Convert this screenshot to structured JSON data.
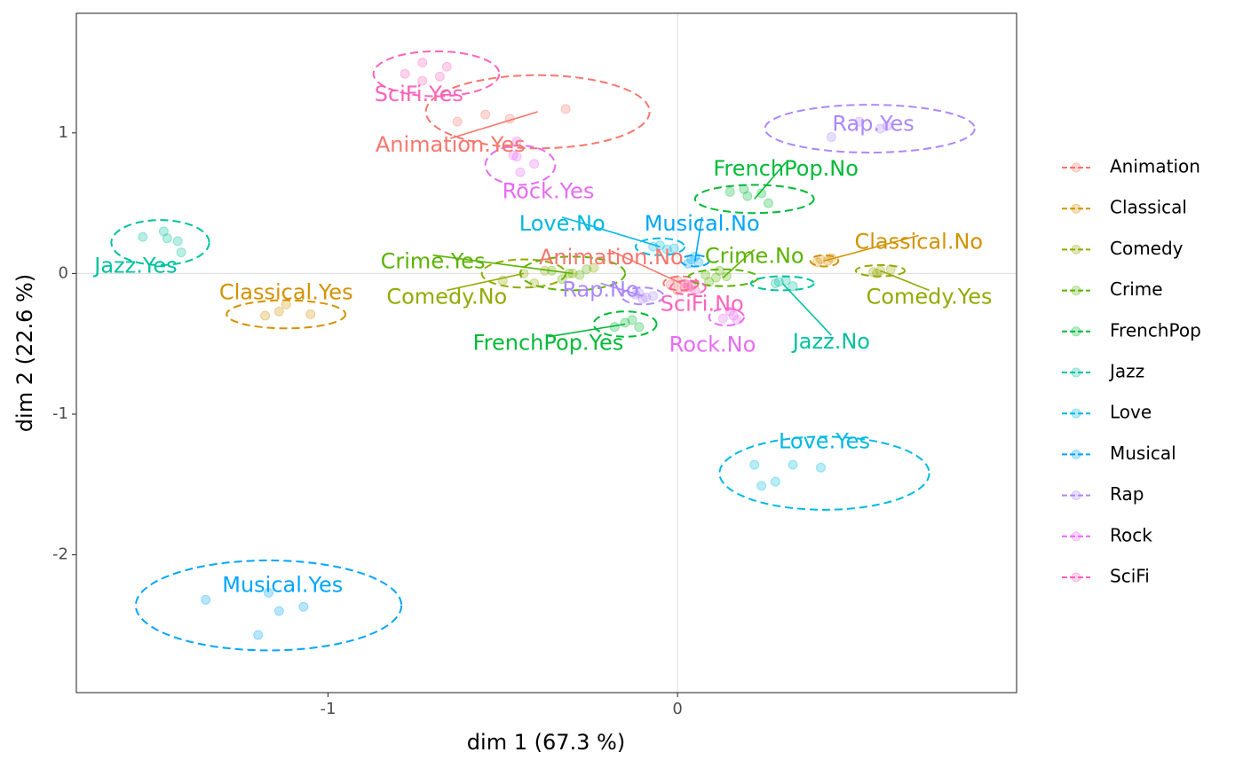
{
  "chart_data": {
    "type": "scatter",
    "xlabel": "dim 1 (67.3 %)",
    "ylabel": "dim 2 (22.6 %)",
    "xlim": [
      -1.72,
      0.97
    ],
    "ylim": [
      -2.98,
      1.85
    ],
    "xticks": [
      -1,
      0
    ],
    "yticks": [
      -2,
      -1,
      0,
      1
    ],
    "xtick_labels": [
      "-1",
      "0"
    ],
    "ytick_labels": [
      "-2",
      "-1",
      "0",
      "1"
    ],
    "grid": "reference lines at x=0 and y=0",
    "legend_position": "right",
    "legend": [
      "Animation",
      "Classical",
      "Comedy",
      "Crime",
      "FrenchPop",
      "Jazz",
      "Love",
      "Musical",
      "Rap",
      "Rock",
      "SciFi"
    ],
    "series": [
      {
        "name": "Animation",
        "color": "#F8766D",
        "groups": [
          {
            "label": "Animation.Yes",
            "center": [
              -0.4,
              1.15
            ],
            "label_pos": [
              -0.65,
              0.91
            ],
            "points": [
              [
                -0.63,
                1.08
              ],
              [
                -0.55,
                1.13
              ],
              [
                -0.48,
                1.1
              ],
              [
                -0.32,
                1.17
              ]
            ],
            "ellipse": {
              "rx": 0.32,
              "ry": 0.26
            }
          },
          {
            "label": "Animation.No",
            "center": [
              0.01,
              -0.07
            ],
            "label_pos": [
              -0.19,
              0.11
            ],
            "points": [
              [
                0.0,
                -0.05
              ],
              [
                0.02,
                -0.07
              ],
              [
                -0.02,
                -0.08
              ],
              [
                0.03,
                -0.1
              ],
              [
                0.0,
                -0.12
              ]
            ],
            "ellipse": {
              "rx": 0.05,
              "ry": 0.05
            }
          }
        ]
      },
      {
        "name": "Classical",
        "color": "#D39200",
        "groups": [
          {
            "label": "Classical.Yes",
            "center": [
              -1.12,
              -0.29
            ],
            "label_pos": [
              -1.12,
              -0.14
            ],
            "points": [
              [
                -1.18,
                -0.3
              ],
              [
                -1.14,
                -0.27
              ],
              [
                -1.12,
                -0.22
              ],
              [
                -1.05,
                -0.29
              ]
            ],
            "ellipse": {
              "rx": 0.17,
              "ry": 0.1
            }
          },
          {
            "label": "Classical.No",
            "center": [
              0.42,
              0.09
            ],
            "label_pos": [
              0.69,
              0.22
            ],
            "points": [
              [
                0.41,
                0.1
              ],
              [
                0.43,
                0.09
              ],
              [
                0.4,
                0.08
              ],
              [
                0.44,
                0.11
              ]
            ],
            "ellipse": {
              "rx": 0.04,
              "ry": 0.04
            }
          }
        ]
      },
      {
        "name": "Comedy",
        "color": "#93AA00",
        "groups": [
          {
            "label": "Comedy.No",
            "center": [
              -0.44,
              0.0
            ],
            "label_pos": [
              -0.66,
              -0.17
            ],
            "points": [
              [
                -0.5,
                -0.05
              ],
              [
                -0.44,
                0.0
              ],
              [
                -0.41,
                -0.07
              ],
              [
                -0.38,
                0.02
              ],
              [
                -0.3,
                0.0
              ],
              [
                -0.24,
                0.04
              ]
            ],
            "ellipse": {
              "rx": 0.12,
              "ry": 0.1
            }
          },
          {
            "label": "Comedy.Yes",
            "center": [
              0.58,
              0.02
            ],
            "label_pos": [
              0.72,
              -0.17
            ],
            "points": [
              [
                0.56,
                0.01
              ],
              [
                0.58,
                0.02
              ],
              [
                0.61,
                0.03
              ],
              [
                0.57,
                0.0
              ]
            ],
            "ellipse": {
              "rx": 0.07,
              "ry": 0.04
            }
          }
        ]
      },
      {
        "name": "Crime",
        "color": "#5BB300",
        "groups": [
          {
            "label": "Crime.Yes",
            "center": [
              -0.3,
              0.0
            ],
            "label_pos": [
              -0.7,
              0.08
            ],
            "points": [
              [
                -0.36,
                0.02
              ],
              [
                -0.31,
                0.0
              ],
              [
                -0.26,
                0.03
              ],
              [
                -0.33,
                -0.04
              ],
              [
                -0.28,
                -0.01
              ]
            ],
            "ellipse": {
              "rx": 0.15,
              "ry": 0.12
            }
          },
          {
            "label": "Crime.No",
            "center": [
              0.13,
              -0.03
            ],
            "label_pos": [
              0.22,
              0.12
            ],
            "points": [
              [
                0.08,
                -0.01
              ],
              [
                0.11,
                -0.03
              ],
              [
                0.14,
                -0.02
              ],
              [
                0.09,
                -0.06
              ],
              [
                0.12,
                0.02
              ]
            ],
            "ellipse": {
              "rx": 0.1,
              "ry": 0.06
            }
          }
        ]
      },
      {
        "name": "FrenchPop",
        "color": "#00BA38",
        "groups": [
          {
            "label": "FrenchPop.No",
            "center": [
              0.22,
              0.53
            ],
            "label_pos": [
              0.31,
              0.74
            ],
            "points": [
              [
                0.15,
                0.58
              ],
              [
                0.2,
                0.55
              ],
              [
                0.24,
                0.57
              ],
              [
                0.26,
                0.5
              ],
              [
                0.19,
                0.6
              ]
            ],
            "ellipse": {
              "rx": 0.17,
              "ry": 0.1
            }
          },
          {
            "label": "FrenchPop.Yes",
            "center": [
              -0.15,
              -0.36
            ],
            "label_pos": [
              -0.37,
              -0.5
            ],
            "points": [
              [
                -0.18,
                -0.38
              ],
              [
                -0.15,
                -0.35
              ],
              [
                -0.13,
                -0.33
              ],
              [
                -0.11,
                -0.38
              ]
            ],
            "ellipse": {
              "rx": 0.09,
              "ry": 0.09
            }
          }
        ]
      },
      {
        "name": "Jazz",
        "color": "#00C19F",
        "groups": [
          {
            "label": "Jazz.Yes",
            "center": [
              -1.48,
              0.22
            ],
            "label_pos": [
              -1.55,
              0.05
            ],
            "points": [
              [
                -1.53,
                0.26
              ],
              [
                -1.47,
                0.3
              ],
              [
                -1.46,
                0.25
              ],
              [
                -1.43,
                0.23
              ],
              [
                -1.42,
                0.15
              ]
            ],
            "ellipse": {
              "rx": 0.14,
              "ry": 0.16
            }
          },
          {
            "label": "Jazz.No",
            "center": [
              0.3,
              -0.07
            ],
            "label_pos": [
              0.44,
              -0.49
            ],
            "points": [
              [
                0.28,
                -0.07
              ],
              [
                0.31,
                -0.05
              ],
              [
                0.33,
                -0.09
              ],
              [
                0.29,
                -0.06
              ]
            ],
            "ellipse": {
              "rx": 0.09,
              "ry": 0.05
            }
          }
        ]
      },
      {
        "name": "Love",
        "color": "#00B9E3",
        "groups": [
          {
            "label": "Love.Yes",
            "center": [
              0.42,
              -1.42
            ],
            "label_pos": [
              0.42,
              -1.2
            ],
            "points": [
              [
                0.22,
                -1.36
              ],
              [
                0.24,
                -1.51
              ],
              [
                0.28,
                -1.48
              ],
              [
                0.33,
                -1.36
              ],
              [
                0.41,
                -1.38
              ]
            ],
            "ellipse": {
              "rx": 0.3,
              "ry": 0.26
            }
          },
          {
            "label": "Love.No",
            "center": [
              -0.05,
              0.19
            ],
            "label_pos": [
              -0.33,
              0.35
            ],
            "points": [
              [
                -0.07,
                0.19
              ],
              [
                -0.05,
                0.2
              ],
              [
                -0.03,
                0.17
              ],
              [
                -0.01,
                0.18
              ]
            ],
            "ellipse": {
              "rx": 0.07,
              "ry": 0.06
            }
          }
        ]
      },
      {
        "name": "Musical",
        "color": "#00A5FF",
        "groups": [
          {
            "label": "Musical.Yes",
            "center": [
              -1.17,
              -2.36
            ],
            "label_pos": [
              -1.13,
              -2.22
            ],
            "points": [
              [
                -1.35,
                -2.32
              ],
              [
                -1.2,
                -2.57
              ],
              [
                -1.17,
                -2.27
              ],
              [
                -1.14,
                -2.4
              ],
              [
                -1.07,
                -2.37
              ]
            ],
            "ellipse": {
              "rx": 0.38,
              "ry": 0.32
            }
          },
          {
            "label": "Musical.No",
            "center": [
              0.05,
              0.09
            ],
            "label_pos": [
              0.07,
              0.35
            ],
            "points": [
              [
                0.04,
                0.1
              ],
              [
                0.06,
                0.08
              ],
              [
                0.05,
                0.12
              ],
              [
                0.03,
                0.07
              ]
            ],
            "ellipse": {
              "rx": 0.04,
              "ry": 0.04
            }
          }
        ]
      },
      {
        "name": "Rap",
        "color": "#AC88FF",
        "groups": [
          {
            "label": "Rap.Yes",
            "center": [
              0.55,
              1.03
            ],
            "label_pos": [
              0.56,
              1.06
            ],
            "points": [
              [
                0.44,
                0.97
              ],
              [
                0.52,
                1.08
              ],
              [
                0.58,
                1.03
              ],
              [
                0.6,
                1.05
              ]
            ],
            "ellipse": {
              "rx": 0.3,
              "ry": 0.17
            }
          },
          {
            "label": "Rap.No",
            "center": [
              -0.1,
              -0.16
            ],
            "label_pos": [
              -0.22,
              -0.12
            ],
            "points": [
              [
                -0.12,
                -0.15
              ],
              [
                -0.09,
                -0.17
              ],
              [
                -0.07,
                -0.16
              ],
              [
                -0.1,
                -0.18
              ],
              [
                -0.11,
                -0.14
              ]
            ],
            "ellipse": {
              "rx": 0.06,
              "ry": 0.06
            }
          }
        ]
      },
      {
        "name": "Rock",
        "color": "#E76BF3",
        "groups": [
          {
            "label": "Rock.Yes",
            "center": [
              -0.45,
              0.77
            ],
            "label_pos": [
              -0.37,
              0.58
            ],
            "points": [
              [
                -0.46,
                0.94
              ],
              [
                -0.46,
                0.83
              ],
              [
                -0.45,
                0.72
              ],
              [
                -0.41,
                0.78
              ],
              [
                -0.47,
                0.84
              ]
            ],
            "ellipse": {
              "rx": 0.1,
              "ry": 0.14
            }
          },
          {
            "label": "Rock.No",
            "center": [
              0.14,
              -0.31
            ],
            "label_pos": [
              0.1,
              -0.51
            ],
            "points": [
              [
                0.13,
                -0.32
              ],
              [
                0.16,
                -0.3
              ],
              [
                0.15,
                -0.27
              ],
              [
                0.17,
                -0.33
              ]
            ],
            "ellipse": {
              "rx": 0.05,
              "ry": 0.06
            }
          }
        ]
      },
      {
        "name": "SciFi",
        "color": "#FF62BC",
        "groups": [
          {
            "label": "SciFi.Yes",
            "center": [
              -0.69,
              1.42
            ],
            "label_pos": [
              -0.74,
              1.27
            ],
            "points": [
              [
                -0.78,
                1.42
              ],
              [
                -0.73,
                1.5
              ],
              [
                -0.73,
                1.37
              ],
              [
                -0.68,
                1.4
              ],
              [
                -0.66,
                1.47
              ]
            ],
            "ellipse": {
              "rx": 0.18,
              "ry": 0.16
            }
          },
          {
            "label": "SciFi.No",
            "center": [
              0.03,
              -0.1
            ],
            "label_pos": [
              0.07,
              -0.22
            ],
            "points": [
              [
                0.02,
                -0.1
              ],
              [
                0.04,
                -0.09
              ],
              [
                0.05,
                -0.12
              ],
              [
                0.03,
                -0.08
              ]
            ],
            "ellipse": {
              "rx": 0.05,
              "ry": 0.05
            }
          }
        ]
      }
    ]
  }
}
